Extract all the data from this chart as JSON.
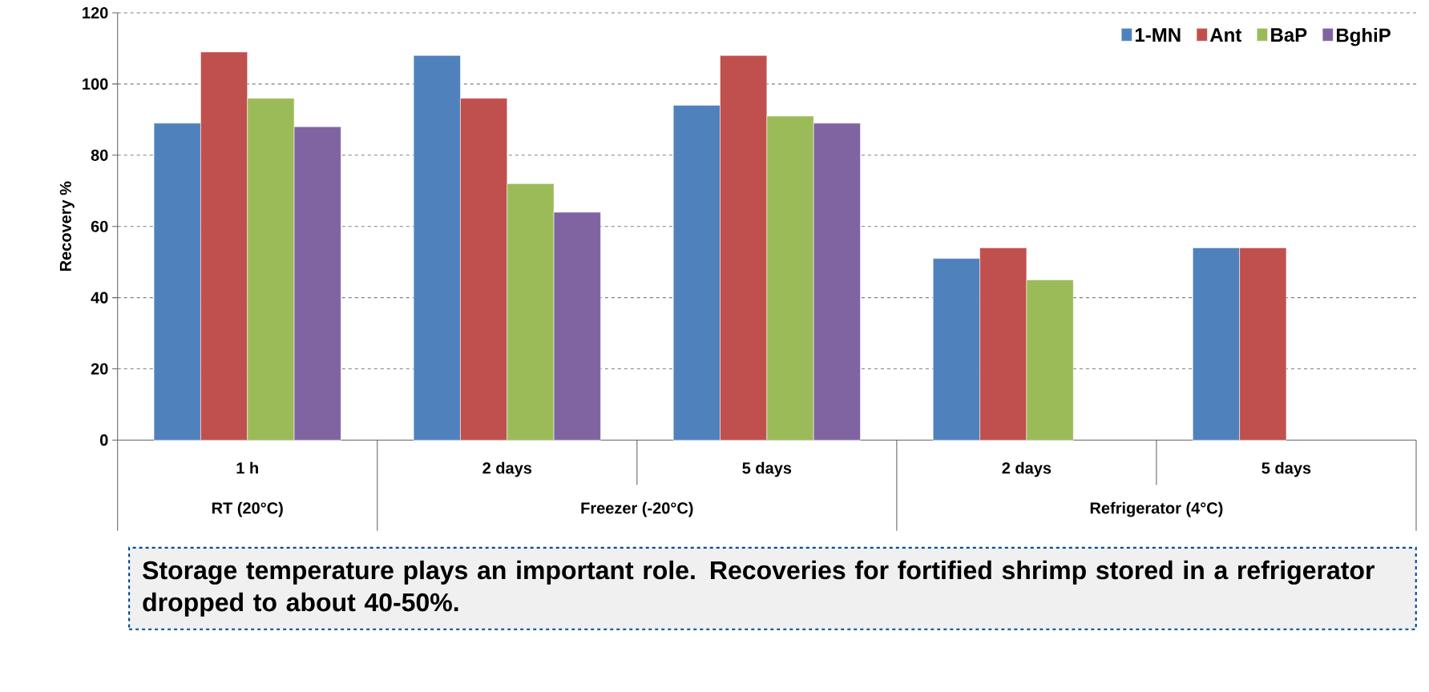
{
  "chart_data": {
    "type": "bar",
    "ylabel": "Recovery  %",
    "categories": [
      "1 h",
      "2 days",
      "5 days",
      "2 days",
      "5 days"
    ],
    "series": [
      {
        "name": "1-MN",
        "color": "#4f81bd",
        "values": [
          89,
          108,
          94,
          51,
          54
        ]
      },
      {
        "name": "Ant",
        "color": "#c0504d",
        "values": [
          109,
          96,
          108,
          54,
          54
        ]
      },
      {
        "name": "BaP",
        "color": "#9bbb59",
        "values": [
          96,
          72,
          91,
          45,
          null
        ]
      },
      {
        "name": "BghiP",
        "color": "#8064a2",
        "values": [
          88,
          64,
          89,
          null,
          null
        ]
      }
    ],
    "ylim": [
      0,
      120
    ],
    "yticks": [
      0,
      20,
      40,
      60,
      80,
      100,
      120
    ],
    "grid": "y",
    "legend": "top right",
    "annotations": [
      "RT (20°C)",
      "Freezer (-20°C)",
      "Refrigerator (4°C)",
      "Storage temperature plays an important role. Recoveries for fortified shrimp stored in a refrigerator dropped to about 40-50%."
    ]
  }
}
